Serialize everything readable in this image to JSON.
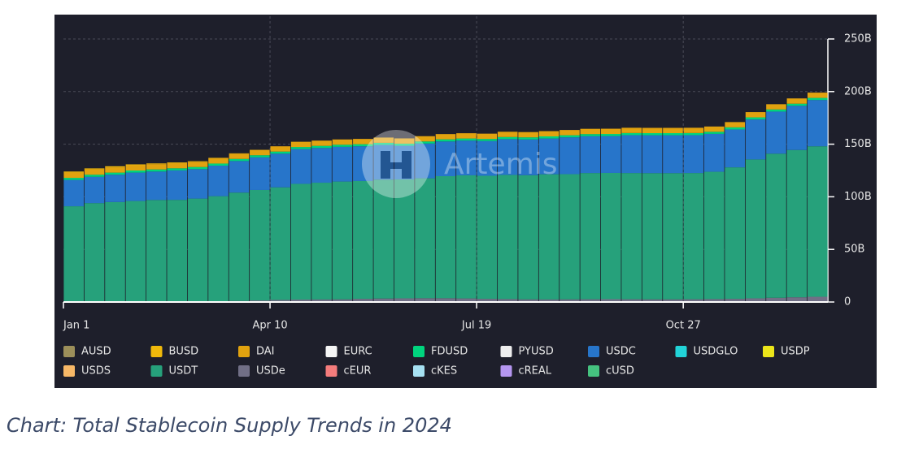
{
  "chart_data": {
    "type": "stacked_bar",
    "title": "Chart: Total Stablecoin Supply Trends in 2024",
    "watermark": "Artemis",
    "categories": [
      "Jan 1",
      null,
      null,
      null,
      null,
      null,
      null,
      null,
      null,
      null,
      "Apr 10",
      null,
      null,
      null,
      null,
      null,
      null,
      null,
      null,
      null,
      "Jul 19",
      null,
      null,
      null,
      null,
      null,
      null,
      null,
      null,
      null,
      "Oct 27",
      null,
      null,
      null,
      null,
      null,
      null
    ],
    "ylim": [
      0,
      250
    ],
    "yticks": [
      0,
      {
        "value": 50,
        "label": "50B"
      },
      {
        "value": 100,
        "label": "100B"
      },
      {
        "value": 150,
        "label": "150B"
      },
      {
        "value": 200,
        "label": "200B"
      },
      {
        "value": 250,
        "label": "250B"
      }
    ],
    "grid": true,
    "series": [
      {
        "name": "AUSD",
        "color": "#9c8f5a",
        "values": [
          0,
          0,
          0,
          0,
          0,
          0,
          0,
          0,
          0,
          0,
          0,
          0,
          0,
          0,
          0,
          0,
          0,
          0,
          0,
          0,
          0,
          0,
          0,
          0,
          0,
          0,
          0,
          0,
          0,
          0,
          0,
          0,
          0,
          0,
          0,
          0,
          0
        ]
      },
      {
        "name": "BUSD",
        "color": "#f0b90b",
        "values": [
          1,
          1,
          1,
          0.8,
          0.7,
          0.6,
          0.5,
          0.4,
          0.3,
          0.2,
          0,
          0,
          0,
          0,
          0,
          0,
          0,
          0,
          0,
          0,
          0,
          0,
          0,
          0,
          0,
          0,
          0,
          0,
          0,
          0,
          0,
          0,
          0,
          0,
          0,
          0,
          0
        ]
      },
      {
        "name": "DAI",
        "color": "#e1a20f",
        "values": [
          5,
          5,
          5,
          5,
          5,
          5,
          5,
          5,
          5,
          5,
          5,
          5,
          5,
          5,
          5,
          5,
          5,
          5,
          5,
          5,
          5,
          5,
          5,
          5,
          5,
          5,
          5,
          5,
          5,
          5,
          5,
          5,
          5,
          5,
          5,
          5,
          5
        ]
      },
      {
        "name": "EURC",
        "color": "#f5f5f5",
        "values": [
          0,
          0,
          0,
          0,
          0,
          0,
          0,
          0,
          0,
          0,
          0,
          0,
          0,
          0,
          0,
          0,
          0,
          0,
          0,
          0,
          0,
          0,
          0,
          0,
          0,
          0,
          0,
          0,
          0,
          0,
          0,
          0,
          0,
          0,
          0,
          0,
          0
        ]
      },
      {
        "name": "FDUSD",
        "color": "#00d47e",
        "values": [
          2,
          2,
          2,
          2,
          2,
          2,
          2,
          2,
          2,
          2,
          2,
          2,
          2,
          2,
          2,
          2,
          2,
          2,
          2,
          2,
          2,
          2,
          2,
          2,
          2,
          2,
          2,
          2,
          2,
          2,
          2,
          2,
          2,
          2,
          2,
          2,
          2
        ]
      },
      {
        "name": "PYUSD",
        "color": "#eeeeee",
        "values": [
          0,
          0,
          0,
          0,
          0,
          0,
          0,
          0,
          0,
          0,
          0,
          0,
          0,
          0,
          0,
          0,
          0,
          0,
          0,
          0,
          0,
          0,
          0,
          0,
          0,
          0,
          0,
          0,
          0,
          0,
          0,
          0,
          0,
          0,
          0,
          0,
          0
        ]
      },
      {
        "name": "USDC",
        "color": "#2775ca",
        "values": [
          25,
          25,
          26,
          27,
          27,
          28,
          28,
          29,
          30,
          31,
          32,
          33,
          33,
          33,
          33,
          33,
          32,
          33,
          33,
          33,
          33,
          34,
          34,
          34,
          35,
          35,
          35,
          36,
          36,
          36,
          36,
          36,
          36,
          38,
          40,
          42,
          44
        ]
      },
      {
        "name": "USDGLO",
        "color": "#22d3d8",
        "values": [
          0,
          0,
          0,
          0,
          0,
          0,
          0,
          0,
          0,
          0,
          0,
          0,
          0,
          0,
          0,
          0,
          0,
          0,
          0,
          0,
          0,
          0,
          0,
          0,
          0,
          0,
          0,
          0,
          0,
          0,
          0,
          0,
          0,
          0,
          0,
          0,
          0
        ]
      },
      {
        "name": "USDP",
        "color": "#ece51a",
        "values": [
          0,
          0,
          0,
          0,
          0,
          0,
          0,
          0,
          0,
          0,
          0,
          0,
          0,
          0,
          0,
          0,
          0,
          0,
          0,
          0,
          0,
          0,
          0,
          0,
          0,
          0,
          0,
          0,
          0,
          0,
          0,
          0,
          0,
          0,
          0,
          0,
          0
        ]
      },
      {
        "name": "USDS",
        "color": "#f7b867",
        "values": [
          0,
          0,
          0,
          0,
          0,
          0,
          0,
          0,
          0,
          0,
          0,
          0,
          0,
          0,
          0,
          0,
          0,
          0,
          0,
          0,
          0,
          0,
          0,
          0,
          0,
          0,
          0,
          0,
          0,
          0,
          0,
          0,
          0,
          0,
          0,
          0,
          0
        ]
      },
      {
        "name": "USDT",
        "color": "#26a17b",
        "values": [
          91,
          94,
          95,
          96,
          97,
          97,
          98,
          100,
          103,
          105,
          107,
          110,
          111,
          112,
          112,
          113,
          113,
          114,
          116,
          117,
          117,
          118,
          118,
          119,
          119,
          120,
          120,
          120,
          120,
          120,
          120,
          121,
          125,
          132,
          137,
          140,
          143
        ]
      },
      {
        "name": "USDe",
        "color": "#716f86",
        "values": [
          0,
          0,
          0,
          0,
          0,
          0.1,
          0.3,
          0.6,
          1,
          1.5,
          2,
          2.3,
          2.4,
          2.5,
          3,
          3.3,
          3.5,
          3.6,
          3.6,
          3.4,
          3,
          2.8,
          2.5,
          2.4,
          2.5,
          2.6,
          2.7,
          2.6,
          2.5,
          2.5,
          2.6,
          2.8,
          3,
          3.5,
          4,
          4.5,
          5
        ]
      },
      {
        "name": "cEUR",
        "color": "#f47c7c",
        "values": [
          0,
          0,
          0,
          0,
          0,
          0,
          0,
          0,
          0,
          0,
          0,
          0,
          0,
          0,
          0,
          0,
          0,
          0,
          0,
          0,
          0,
          0,
          0,
          0,
          0,
          0,
          0,
          0,
          0,
          0,
          0,
          0,
          0,
          0,
          0,
          0,
          0
        ]
      },
      {
        "name": "cKES",
        "color": "#a6e1f2",
        "values": [
          0,
          0,
          0,
          0,
          0,
          0,
          0,
          0,
          0,
          0,
          0,
          0,
          0,
          0,
          0,
          0,
          0,
          0,
          0,
          0,
          0,
          0,
          0,
          0,
          0,
          0,
          0,
          0,
          0,
          0,
          0,
          0,
          0,
          0,
          0,
          0,
          0
        ]
      },
      {
        "name": "cREAL",
        "color": "#b596f0",
        "values": [
          0,
          0,
          0,
          0,
          0,
          0,
          0,
          0,
          0,
          0,
          0,
          0,
          0,
          0,
          0,
          0,
          0,
          0,
          0,
          0,
          0,
          0,
          0,
          0,
          0,
          0,
          0,
          0,
          0,
          0,
          0,
          0,
          0,
          0,
          0,
          0,
          0
        ]
      },
      {
        "name": "cUSD",
        "color": "#45c27f",
        "values": [
          0,
          0,
          0,
          0,
          0,
          0,
          0,
          0,
          0,
          0,
          0,
          0,
          0,
          0,
          0,
          0,
          0,
          0,
          0,
          0,
          0,
          0,
          0,
          0,
          0,
          0,
          0,
          0,
          0,
          0,
          0,
          0,
          0,
          0,
          0,
          0,
          0
        ]
      }
    ]
  }
}
